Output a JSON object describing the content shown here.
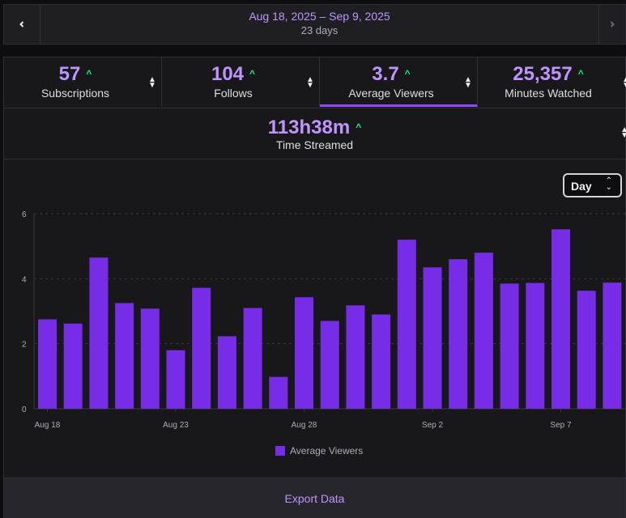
{
  "date_nav": {
    "range": "Aug 18, 2025 – Sep 9, 2025",
    "days": "23 days",
    "prev_icon": "chevron-left-icon",
    "next_icon": "chevron-right-icon"
  },
  "stats": [
    {
      "value": "57",
      "label": "Subscriptions"
    },
    {
      "value": "104",
      "label": "Follows"
    },
    {
      "value": "3.7",
      "label": "Average Viewers"
    },
    {
      "value": "25,357",
      "label": "Minutes Watched"
    }
  ],
  "time_streamed": {
    "value": "113h38m",
    "label": "Time Streamed"
  },
  "trend_glyph": "^",
  "sort_glyph_up": "▲",
  "sort_glyph_down": "▼",
  "granularity": {
    "selected": "Day"
  },
  "colors": {
    "accent": "#bf94ff",
    "bar": "#772ce8",
    "up": "#00f593"
  },
  "chart_data": {
    "type": "bar",
    "title": "",
    "xlabel": "",
    "ylabel": "",
    "ylim": [
      0,
      6
    ],
    "yticks": [
      0,
      2,
      4,
      6
    ],
    "categories": [
      "Aug 18",
      "Aug 19",
      "Aug 20",
      "Aug 21",
      "Aug 22",
      "Aug 23",
      "Aug 24",
      "Aug 25",
      "Aug 26",
      "Aug 27",
      "Aug 28",
      "Aug 29",
      "Aug 30",
      "Aug 31",
      "Sep 1",
      "Sep 2",
      "Sep 3",
      "Sep 4",
      "Sep 5",
      "Sep 6",
      "Sep 7",
      "Sep 8",
      "Sep 9"
    ],
    "tick_labels": [
      {
        "index": 0,
        "label": "Aug 18"
      },
      {
        "index": 5,
        "label": "Aug 23"
      },
      {
        "index": 10,
        "label": "Aug 28"
      },
      {
        "index": 15,
        "label": "Sep 2"
      },
      {
        "index": 20,
        "label": "Sep 7"
      }
    ],
    "series": [
      {
        "name": "Average Viewers",
        "values": [
          2.75,
          2.62,
          4.65,
          3.25,
          3.08,
          1.8,
          3.72,
          2.23,
          3.1,
          0.98,
          3.43,
          2.7,
          3.18,
          2.9,
          5.2,
          4.35,
          4.6,
          4.8,
          3.85,
          3.87,
          5.52,
          3.63,
          3.88
        ]
      }
    ]
  },
  "export_label": "Export Data"
}
